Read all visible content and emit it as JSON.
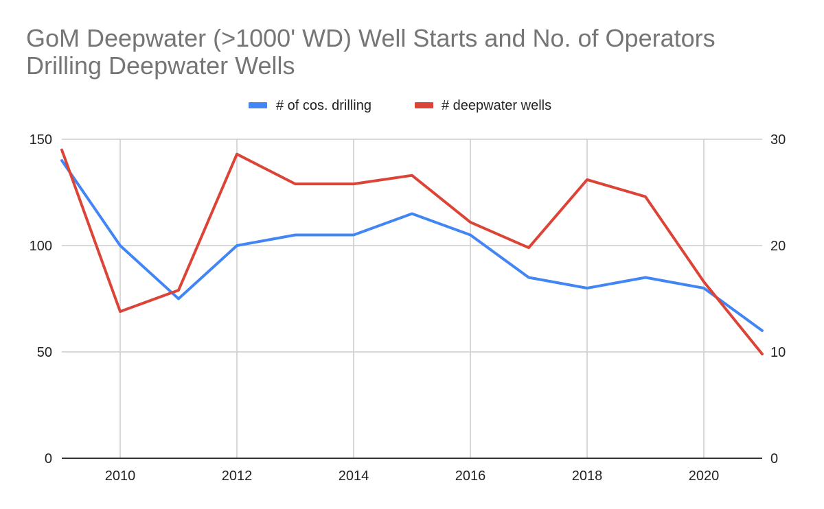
{
  "chart_data": {
    "type": "line",
    "title_lines": [
      "GoM Deepwater (>1000' WD) Well Starts and No. of Operators",
      "Drilling Deepwater Wells"
    ],
    "x": [
      2009,
      2010,
      2011,
      2012,
      2013,
      2014,
      2015,
      2016,
      2017,
      2018,
      2019,
      2020,
      2021
    ],
    "xlim": [
      2009,
      2021
    ],
    "x_ticks": [
      "2010",
      "2012",
      "2014",
      "2016",
      "2018",
      "2020"
    ],
    "left_axis": {
      "ylim": [
        0,
        150
      ],
      "ticks": [
        "0",
        "50",
        "100",
        "150"
      ]
    },
    "right_axis": {
      "ylim": [
        0,
        30
      ],
      "ticks": [
        "0",
        "10",
        "20",
        "30"
      ]
    },
    "series": [
      {
        "name": "# of cos. drilling",
        "axis": "left",
        "color": "#4285f4",
        "values": [
          140,
          100,
          75,
          100,
          105,
          105,
          115,
          105,
          85,
          80,
          85,
          80,
          60
        ]
      },
      {
        "name": "# deepwater wells",
        "axis": "right",
        "color": "#db4437",
        "values": [
          29,
          13.8,
          15.8,
          28.6,
          25.8,
          25.8,
          26.6,
          22.2,
          19.8,
          26.2,
          24.6,
          16.6,
          9.8
        ]
      }
    ],
    "grid": true,
    "legend_position": "top"
  }
}
